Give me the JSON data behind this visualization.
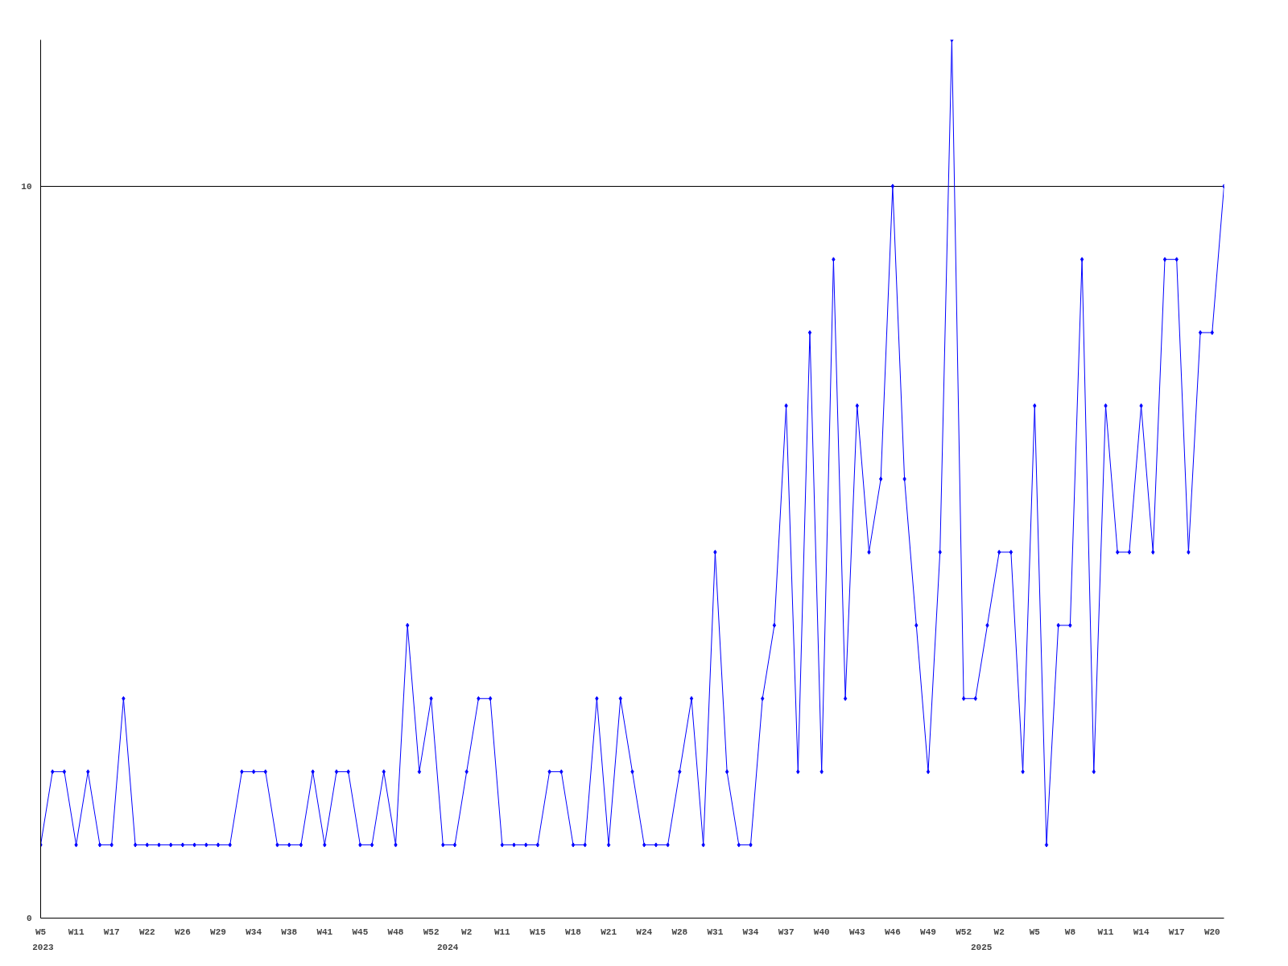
{
  "chart_data": {
    "type": "line",
    "categories": [
      "W5",
      null,
      null,
      "W11",
      null,
      null,
      "W17",
      null,
      null,
      "W22",
      null,
      null,
      "W26",
      null,
      null,
      "W29",
      null,
      null,
      "W34",
      null,
      null,
      "W38",
      null,
      null,
      "W41",
      null,
      null,
      "W45",
      null,
      null,
      "W48",
      null,
      null,
      "W52",
      null,
      null,
      "W2",
      null,
      null,
      "W11",
      null,
      null,
      "W15",
      null,
      null,
      "W18",
      null,
      null,
      "W21",
      null,
      null,
      "W24",
      null,
      null,
      "W28",
      null,
      null,
      "W31",
      null,
      null,
      "W34",
      null,
      null,
      "W37",
      null,
      null,
      "W40",
      null,
      null,
      "W43",
      null,
      null,
      "W46",
      null,
      null,
      "W49",
      null,
      null,
      "W52",
      null,
      null,
      "W2",
      null,
      null,
      "W5",
      null,
      null,
      "W8",
      null,
      null,
      "W11",
      null,
      null,
      "W14",
      null,
      null,
      "W17",
      null,
      null,
      "W20",
      null
    ],
    "series": [
      {
        "color": "#0000ff",
        "values": [
          1,
          2,
          2,
          1,
          2,
          1,
          1,
          3,
          1,
          1,
          1,
          1,
          1,
          1,
          1,
          1,
          1,
          2,
          2,
          2,
          1,
          1,
          1,
          2,
          1,
          2,
          2,
          1,
          1,
          2,
          1,
          4,
          2,
          3,
          1,
          1,
          2,
          3,
          3,
          1,
          1,
          1,
          1,
          2,
          2,
          1,
          1,
          3,
          1,
          3,
          2,
          1,
          1,
          1,
          2,
          3,
          1,
          5,
          2,
          1,
          1,
          3,
          4,
          7,
          2,
          8,
          2,
          9,
          3,
          7,
          5,
          6,
          10,
          6,
          4,
          2,
          5,
          12,
          3,
          3,
          4,
          5,
          5,
          2,
          7,
          1,
          4,
          4,
          9,
          2,
          7,
          5,
          5,
          7,
          5,
          9,
          9,
          5,
          8,
          8,
          10
        ]
      }
    ],
    "ylim": [
      0,
      12
    ],
    "yticks": [
      0,
      10
    ],
    "grid": "y",
    "marker": "diamond",
    "line_style": "solid",
    "annotations": [
      "2023",
      "2024",
      "2025"
    ]
  }
}
